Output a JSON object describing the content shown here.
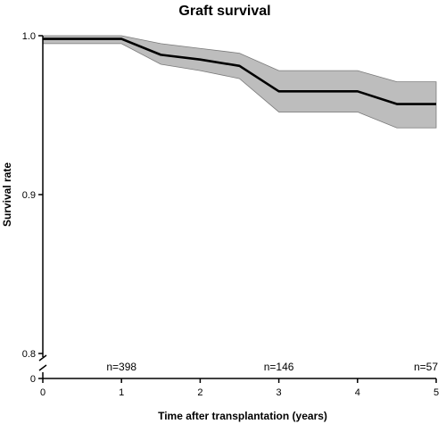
{
  "chart_data": {
    "type": "line",
    "title": "Graft survival",
    "xlabel": "Time after transplantation (years)",
    "ylabel": "Survival rate",
    "xlim": [
      0,
      5
    ],
    "ylim_main": [
      0.8,
      1.0
    ],
    "x_ticks": [
      "0",
      "1",
      "2",
      "3",
      "4",
      "5"
    ],
    "y_ticks_main": [
      "1.0",
      "0.9",
      "0.8"
    ],
    "y_tick_zero": "0",
    "axis_break": "y-axis broken between 0 and 0.8",
    "grid": false,
    "series": [
      {
        "style": "step-like line with gray confidence band",
        "color": "#000000",
        "band_color": "#bdbdbd",
        "x": [
          0,
          1,
          1.5,
          2,
          2.5,
          3,
          4,
          4.5,
          5
        ],
        "y": [
          0.998,
          0.998,
          0.988,
          0.985,
          0.981,
          0.965,
          0.965,
          0.957,
          0.957
        ],
        "ci_lower": [
          0.995,
          0.995,
          0.982,
          0.978,
          0.973,
          0.952,
          0.952,
          0.942,
          0.942
        ],
        "ci_upper": [
          1.0,
          1.0,
          0.995,
          0.992,
          0.989,
          0.978,
          0.978,
          0.971,
          0.971
        ]
      }
    ],
    "annotations": [
      {
        "x": 1,
        "text": "n=398"
      },
      {
        "x": 3,
        "text": "n=146"
      },
      {
        "x": 5,
        "text": "n=57"
      }
    ]
  }
}
